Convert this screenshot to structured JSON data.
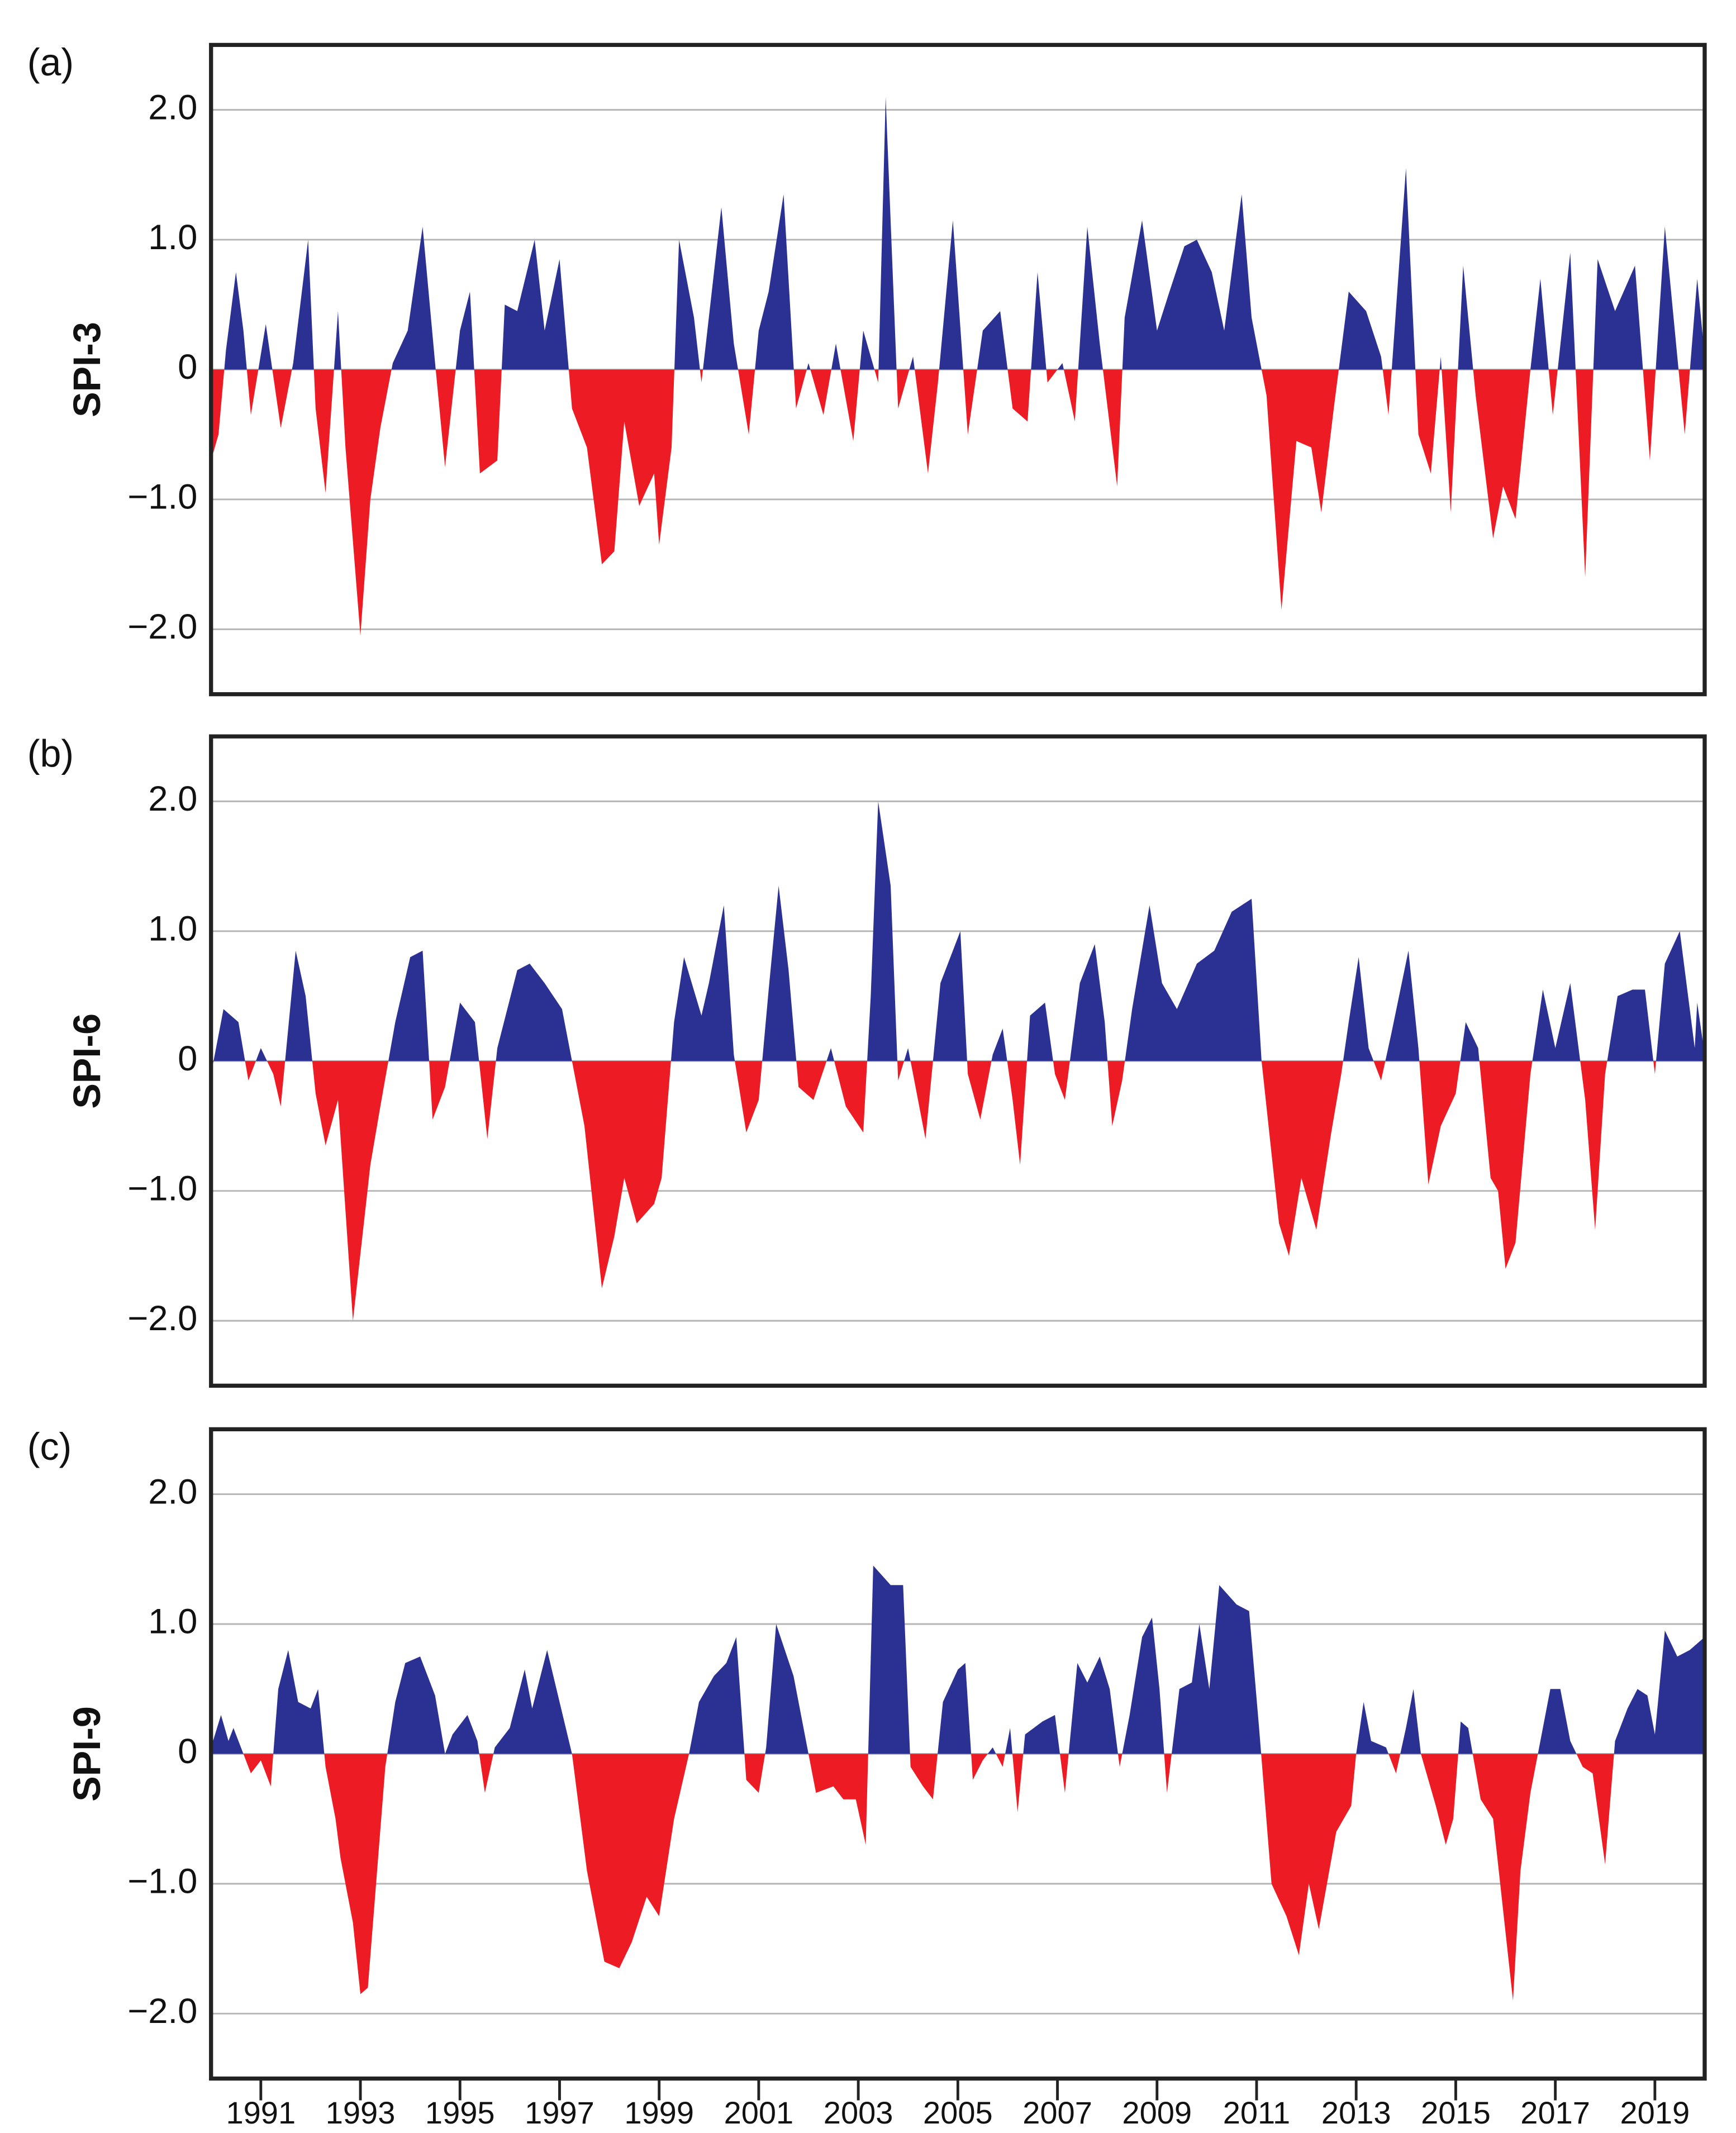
{
  "chart_data": [
    {
      "type": "area",
      "panel_label": "(a)",
      "ylabel": "SPI-3",
      "positive_color": "#2b3192",
      "negative_color": "#ed1c24",
      "grid": true,
      "xlim": [
        1990,
        2020
      ],
      "ylim": [
        -2.5,
        2.5
      ],
      "yticks": [
        {
          "value": 2,
          "label": "2.0"
        },
        {
          "value": 1,
          "label": "1.0"
        },
        0,
        {
          "value": -1,
          "label": "−1.0"
        },
        {
          "value": -2,
          "label": "−2.0"
        }
      ],
      "x": [
        1990.0,
        1990.15,
        1990.3,
        1990.5,
        1990.65,
        1990.8,
        1991.1,
        1991.4,
        1991.65,
        1991.95,
        1992.1,
        1992.3,
        1992.55,
        1992.7,
        1993.0,
        1993.2,
        1993.4,
        1993.65,
        1993.95,
        1994.25,
        1994.5,
        1994.7,
        1995.0,
        1995.2,
        1995.4,
        1995.75,
        1995.9,
        1996.15,
        1996.5,
        1996.7,
        1997.0,
        1997.25,
        1997.55,
        1997.85,
        1998.1,
        1998.3,
        1998.6,
        1998.9,
        1999.0,
        1999.25,
        1999.4,
        1999.7,
        1999.85,
        2000.25,
        2000.5,
        2000.8,
        2001.0,
        2001.2,
        2001.5,
        2001.75,
        2002.0,
        2002.3,
        2002.55,
        2002.9,
        2003.1,
        2003.4,
        2003.55,
        2003.8,
        2004.1,
        2004.4,
        2004.6,
        2004.9,
        2005.2,
        2005.5,
        2005.85,
        2006.1,
        2006.4,
        2006.6,
        2006.8,
        2007.1,
        2007.35,
        2007.6,
        2007.85,
        2008.2,
        2008.35,
        2008.7,
        2009.0,
        2009.25,
        2009.55,
        2009.8,
        2010.1,
        2010.35,
        2010.7,
        2010.9,
        2011.2,
        2011.5,
        2011.8,
        2012.1,
        2012.3,
        2012.55,
        2012.85,
        2013.2,
        2013.5,
        2013.65,
        2014.0,
        2014.25,
        2014.5,
        2014.7,
        2014.9,
        2015.15,
        2015.4,
        2015.75,
        2015.95,
        2016.2,
        2016.5,
        2016.7,
        2016.95,
        2017.3,
        2017.6,
        2017.85,
        2018.2,
        2018.6,
        2018.9,
        2019.2,
        2019.6,
        2019.85,
        2020.0
      ],
      "values": [
        -0.7,
        -0.5,
        0.15,
        0.75,
        0.3,
        -0.35,
        0.35,
        -0.45,
        0.05,
        1.0,
        -0.3,
        -0.95,
        0.45,
        -0.6,
        -2.05,
        -1.0,
        -0.45,
        0.05,
        0.3,
        1.1,
        0.05,
        -0.75,
        0.3,
        0.6,
        -0.8,
        -0.7,
        0.5,
        0.45,
        1.0,
        0.3,
        0.85,
        -0.3,
        -0.6,
        -1.5,
        -1.4,
        -0.4,
        -1.05,
        -0.8,
        -1.35,
        -0.6,
        1.0,
        0.4,
        -0.1,
        1.25,
        0.2,
        -0.5,
        0.3,
        0.6,
        1.35,
        -0.3,
        0.05,
        -0.35,
        0.2,
        -0.55,
        0.3,
        -0.1,
        2.1,
        -0.3,
        0.1,
        -0.8,
        -0.1,
        1.15,
        -0.5,
        0.3,
        0.45,
        -0.3,
        -0.4,
        0.75,
        -0.1,
        0.05,
        -0.4,
        1.1,
        0.2,
        -0.9,
        0.4,
        1.15,
        0.3,
        0.6,
        0.95,
        1.0,
        0.75,
        0.3,
        1.35,
        0.4,
        -0.2,
        -1.85,
        -0.55,
        -0.6,
        -1.1,
        -0.3,
        0.6,
        0.45,
        0.1,
        -0.35,
        1.55,
        -0.5,
        -0.8,
        0.1,
        -1.1,
        0.8,
        -0.2,
        -1.3,
        -0.9,
        -1.15,
        0.0,
        0.7,
        -0.35,
        0.9,
        -1.6,
        0.85,
        0.45,
        0.8,
        -0.7,
        1.1,
        -0.5,
        0.7,
        0.1
      ]
    },
    {
      "type": "area",
      "panel_label": "(b)",
      "ylabel": "SPI-6",
      "positive_color": "#2b3192",
      "negative_color": "#ed1c24",
      "grid": true,
      "xlim": [
        1990,
        2020
      ],
      "ylim": [
        -2.5,
        2.5
      ],
      "yticks": [
        {
          "value": 2,
          "label": "2.0"
        },
        {
          "value": 1,
          "label": "1.0"
        },
        0,
        {
          "value": -1,
          "label": "−1.0"
        },
        {
          "value": -2,
          "label": "−2.0"
        }
      ],
      "x": [
        1990.0,
        1990.25,
        1990.55,
        1990.75,
        1991.0,
        1991.25,
        1991.4,
        1991.7,
        1991.9,
        1992.1,
        1992.3,
        1992.55,
        1992.85,
        1993.2,
        1993.4,
        1993.7,
        1994.0,
        1994.25,
        1994.45,
        1994.7,
        1995.0,
        1995.3,
        1995.55,
        1995.75,
        1996.15,
        1996.4,
        1996.7,
        1997.05,
        1997.25,
        1997.5,
        1997.85,
        1998.1,
        1998.3,
        1998.55,
        1998.9,
        1999.05,
        1999.3,
        1999.5,
        1999.85,
        2000.0,
        2000.3,
        2000.5,
        2000.75,
        2001.0,
        2001.2,
        2001.4,
        2001.6,
        2001.8,
        2002.1,
        2002.45,
        2002.75,
        2003.1,
        2003.25,
        2003.4,
        2003.65,
        2003.8,
        2004.0,
        2004.35,
        2004.65,
        2005.05,
        2005.2,
        2005.45,
        2005.7,
        2005.9,
        2006.1,
        2006.25,
        2006.45,
        2006.75,
        2006.95,
        2007.15,
        2007.45,
        2007.75,
        2007.95,
        2008.1,
        2008.3,
        2008.5,
        2008.85,
        2009.1,
        2009.4,
        2009.8,
        2010.15,
        2010.5,
        2010.9,
        2011.1,
        2011.45,
        2011.65,
        2011.9,
        2012.2,
        2012.5,
        2012.7,
        2012.85,
        2013.05,
        2013.25,
        2013.5,
        2013.7,
        2014.05,
        2014.25,
        2014.45,
        2014.7,
        2015.0,
        2015.2,
        2015.45,
        2015.7,
        2015.85,
        2016.0,
        2016.2,
        2016.5,
        2016.75,
        2017.0,
        2017.3,
        2017.6,
        2017.8,
        2018.0,
        2018.25,
        2018.55,
        2018.8,
        2019.0,
        2019.2,
        2019.5,
        2019.8,
        2019.85,
        2020.0
      ],
      "values": [
        -0.1,
        0.4,
        0.3,
        -0.15,
        0.1,
        -0.1,
        -0.35,
        0.85,
        0.5,
        -0.25,
        -0.65,
        -0.3,
        -2.0,
        -0.8,
        -0.35,
        0.3,
        0.8,
        0.85,
        -0.45,
        -0.2,
        0.45,
        0.3,
        -0.6,
        0.1,
        0.7,
        0.75,
        0.6,
        0.4,
        0.0,
        -0.5,
        -1.75,
        -1.35,
        -0.9,
        -1.25,
        -1.1,
        -0.9,
        0.3,
        0.8,
        0.35,
        0.6,
        1.2,
        0.05,
        -0.55,
        -0.3,
        0.55,
        1.35,
        0.7,
        -0.2,
        -0.3,
        0.1,
        -0.35,
        -0.55,
        0.5,
        2.0,
        1.35,
        -0.15,
        0.1,
        -0.6,
        0.6,
        1.0,
        -0.1,
        -0.45,
        0.05,
        0.25,
        -0.3,
        -0.8,
        0.35,
        0.45,
        -0.1,
        -0.3,
        0.6,
        0.9,
        0.3,
        -0.5,
        -0.15,
        0.4,
        1.2,
        0.6,
        0.4,
        0.75,
        0.85,
        1.15,
        1.25,
        0.0,
        -1.25,
        -1.5,
        -0.9,
        -1.3,
        -0.55,
        -0.1,
        0.3,
        0.8,
        0.1,
        -0.15,
        0.2,
        0.85,
        0.1,
        -0.95,
        -0.5,
        -0.25,
        0.3,
        0.1,
        -0.9,
        -1.0,
        -1.6,
        -1.4,
        -0.1,
        0.55,
        0.1,
        0.6,
        -0.3,
        -1.3,
        -0.1,
        0.5,
        0.55,
        0.55,
        -0.1,
        0.75,
        1.0,
        0.1,
        0.45,
        0.05
      ]
    },
    {
      "type": "area",
      "panel_label": "(c)",
      "ylabel": "SPI-9",
      "positive_color": "#2b3192",
      "negative_color": "#ed1c24",
      "grid": true,
      "xlim": [
        1990,
        2020
      ],
      "ylim": [
        -2.5,
        2.5
      ],
      "yticks": [
        {
          "value": 2,
          "label": "2.0"
        },
        {
          "value": 1,
          "label": "1.0"
        },
        0,
        {
          "value": -1,
          "label": "−1.0"
        },
        {
          "value": -2,
          "label": "−2.0"
        }
      ],
      "xticks": [
        1991,
        1993,
        1995,
        1997,
        1999,
        2001,
        2003,
        2005,
        2007,
        2009,
        2011,
        2013,
        2015,
        2017,
        2019
      ],
      "x": [
        1990.0,
        1990.2,
        1990.35,
        1990.45,
        1990.6,
        1990.8,
        1991.0,
        1991.2,
        1991.35,
        1991.55,
        1991.75,
        1992.0,
        1992.15,
        1992.3,
        1992.5,
        1992.6,
        1992.85,
        1993.0,
        1993.15,
        1993.5,
        1993.7,
        1993.9,
        1994.2,
        1994.5,
        1994.7,
        1994.85,
        1995.15,
        1995.35,
        1995.5,
        1995.7,
        1996.0,
        1996.3,
        1996.45,
        1996.75,
        1997.0,
        1997.25,
        1997.55,
        1997.9,
        1998.2,
        1998.45,
        1998.75,
        1999.0,
        1999.3,
        1999.6,
        1999.8,
        2000.1,
        2000.35,
        2000.55,
        2000.75,
        2001.0,
        2001.15,
        2001.35,
        2001.7,
        2001.95,
        2002.15,
        2002.5,
        2002.7,
        2002.95,
        2003.15,
        2003.3,
        2003.65,
        2003.9,
        2004.05,
        2004.3,
        2004.5,
        2004.7,
        2005.0,
        2005.15,
        2005.3,
        2005.5,
        2005.7,
        2005.9,
        2006.05,
        2006.2,
        2006.35,
        2006.7,
        2006.95,
        2007.15,
        2007.4,
        2007.6,
        2007.85,
        2008.05,
        2008.25,
        2008.45,
        2008.7,
        2008.9,
        2009.05,
        2009.2,
        2009.45,
        2009.7,
        2009.85,
        2010.05,
        2010.25,
        2010.6,
        2010.85,
        2011.05,
        2011.3,
        2011.6,
        2011.85,
        2012.05,
        2012.25,
        2012.6,
        2012.9,
        2013.0,
        2013.15,
        2013.3,
        2013.6,
        2013.8,
        2014.0,
        2014.15,
        2014.3,
        2014.6,
        2014.8,
        2014.95,
        2015.1,
        2015.25,
        2015.5,
        2015.75,
        2015.95,
        2016.15,
        2016.3,
        2016.5,
        2016.7,
        2016.9,
        2017.1,
        2017.3,
        2017.55,
        2017.75,
        2018.0,
        2018.2,
        2018.45,
        2018.65,
        2018.85,
        2019.0,
        2019.2,
        2019.45,
        2019.7,
        2020.0
      ],
      "values": [
        0.05,
        0.3,
        0.1,
        0.2,
        0.05,
        -0.15,
        -0.05,
        -0.25,
        0.5,
        0.8,
        0.4,
        0.35,
        0.5,
        -0.1,
        -0.5,
        -0.8,
        -1.3,
        -1.85,
        -1.8,
        -0.1,
        0.4,
        0.7,
        0.75,
        0.45,
        0.0,
        0.15,
        0.3,
        0.1,
        -0.3,
        0.05,
        0.2,
        0.65,
        0.35,
        0.8,
        0.4,
        0.0,
        -0.9,
        -1.6,
        -1.65,
        -1.45,
        -1.1,
        -1.25,
        -0.5,
        0.0,
        0.4,
        0.6,
        0.7,
        0.9,
        -0.2,
        -0.3,
        0.05,
        1.0,
        0.6,
        0.1,
        -0.3,
        -0.25,
        -0.35,
        -0.35,
        -0.7,
        1.45,
        1.3,
        1.3,
        -0.1,
        -0.25,
        -0.35,
        0.4,
        0.65,
        0.7,
        -0.2,
        -0.05,
        0.05,
        -0.1,
        0.2,
        -0.45,
        0.15,
        0.25,
        0.3,
        -0.3,
        0.7,
        0.55,
        0.75,
        0.5,
        -0.1,
        0.3,
        0.9,
        1.05,
        0.5,
        -0.3,
        0.5,
        0.55,
        1.0,
        0.5,
        1.3,
        1.15,
        1.1,
        0.2,
        -1.0,
        -1.25,
        -1.55,
        -1.0,
        -1.35,
        -0.6,
        -0.4,
        0.0,
        0.4,
        0.1,
        0.05,
        -0.15,
        0.2,
        0.5,
        0.0,
        -0.4,
        -0.7,
        -0.5,
        0.25,
        0.2,
        -0.35,
        -0.5,
        -1.2,
        -1.9,
        -0.9,
        -0.3,
        0.1,
        0.5,
        0.5,
        0.1,
        -0.1,
        -0.15,
        -0.85,
        0.1,
        0.35,
        0.5,
        0.45,
        0.15,
        0.95,
        0.75,
        0.8,
        0.9
      ]
    }
  ]
}
